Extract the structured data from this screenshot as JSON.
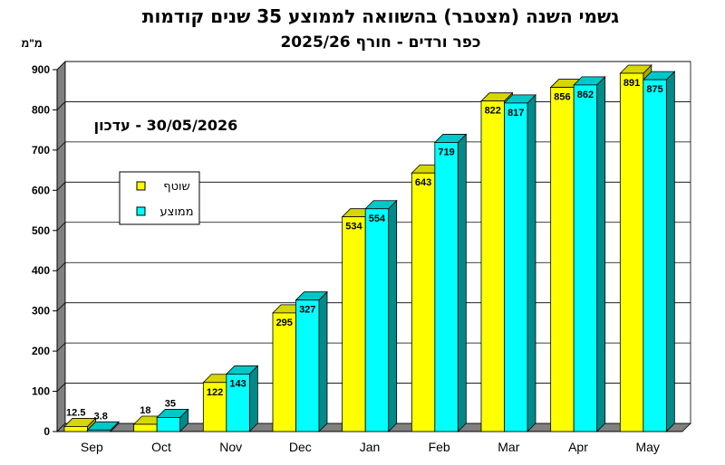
{
  "chart_data": {
    "type": "bar",
    "title": "גשמי השנה (מצטבר) בהשוואה לממוצע 35 שנים קודמות",
    "subtitle": "כפר ורדים - חורף 2025/26",
    "ylabel": "מ\"מ",
    "update_label": "30/05/2026 - עדכון",
    "ylim": [
      0,
      900
    ],
    "yticks": [
      0,
      100,
      200,
      300,
      400,
      500,
      600,
      700,
      800,
      900
    ],
    "grid": true,
    "legend_position": "left",
    "categories": [
      "Sep",
      "Oct",
      "Nov",
      "Dec",
      "Jan",
      "Feb",
      "Mar",
      "Apr",
      "May"
    ],
    "series": [
      {
        "name": "שוטף",
        "color": "#FFFF00",
        "side_color": "#A8A800",
        "top_color": "#D6D600",
        "values": [
          12.5,
          18,
          122,
          295,
          534,
          643,
          822,
          856,
          891
        ],
        "labels": [
          "12.5",
          "18",
          "122",
          "295",
          "534",
          "643",
          "822",
          "856",
          "891"
        ]
      },
      {
        "name": "ממוצע",
        "color": "#00FFFF",
        "side_color": "#008A8A",
        "top_color": "#00C8C8",
        "values": [
          3.8,
          35,
          143,
          327,
          554,
          719,
          817,
          862,
          875
        ],
        "labels": [
          "3.8",
          "35",
          "143",
          "327",
          "554",
          "719",
          "817",
          "862",
          "875"
        ]
      }
    ]
  }
}
